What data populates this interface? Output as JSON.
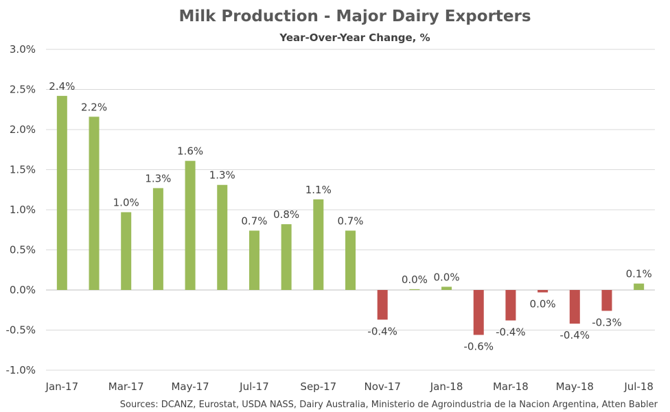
{
  "chart_data": {
    "type": "bar",
    "title": "Milk Production - Major Dairy Exporters",
    "subtitle": "Year-Over-Year Change, %",
    "source": "Sources: DCANZ, Eurostat, USDA NASS, Dairy Australia, Ministerio de Agroindustria de la Nacion Argentina, Atten Babler",
    "categories": [
      "Jan-17",
      "Feb-17",
      "Mar-17",
      "Apr-17",
      "May-17",
      "Jun-17",
      "Jul-17",
      "Aug-17",
      "Sep-17",
      "Oct-17",
      "Nov-17",
      "Dec-17",
      "Jan-18",
      "Feb-18",
      "Mar-18",
      "Apr-18",
      "May-18",
      "Jun-18",
      "Jul-18"
    ],
    "x_tick_labels": [
      "Jan-17",
      "",
      "Mar-17",
      "",
      "May-17",
      "",
      "Jul-17",
      "",
      "Sep-17",
      "",
      "Nov-17",
      "",
      "Jan-18",
      "",
      "Mar-18",
      "",
      "May-18",
      "",
      "Jul-18"
    ],
    "values": [
      2.42,
      2.16,
      0.97,
      1.27,
      1.61,
      1.31,
      0.74,
      0.82,
      1.13,
      0.74,
      -0.37,
      0.01,
      0.04,
      -0.56,
      -0.38,
      -0.03,
      -0.42,
      -0.26,
      0.08
    ],
    "data_labels": [
      "2.4%",
      "2.2%",
      "1.0%",
      "1.3%",
      "1.6%",
      "1.3%",
      "0.7%",
      "0.8%",
      "1.1%",
      "0.7%",
      "-0.4%",
      "0.0%",
      "0.0%",
      "-0.6%",
      "-0.4%",
      "0.0%",
      "-0.4%",
      "-0.3%",
      "0.1%"
    ],
    "y_ticks": [
      3.0,
      2.5,
      2.0,
      1.5,
      1.0,
      0.5,
      0.0,
      -0.5,
      -1.0
    ],
    "y_tick_labels": [
      "3.0%",
      "2.5%",
      "2.0%",
      "1.5%",
      "1.0%",
      "0.5%",
      "0.0%",
      "-0.5%",
      "-1.0%"
    ],
    "ylim": [
      -1.0,
      3.0
    ],
    "grid": true,
    "legend": "none",
    "colors": {
      "positive": "#9bbb59",
      "negative": "#c0504d"
    }
  }
}
